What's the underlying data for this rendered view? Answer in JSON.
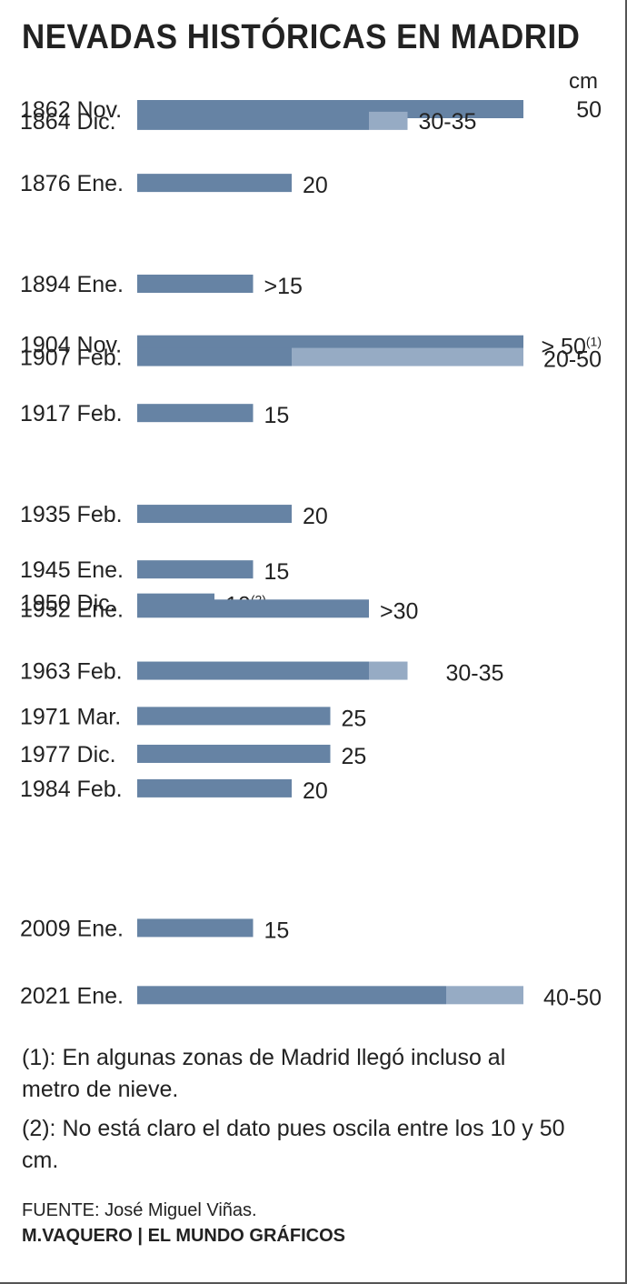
{
  "title": "NEVADAS HISTÓRICAS EN MADRID",
  "unit_label": "cm",
  "colors": {
    "dark": "#6683a4",
    "light": "#96abc4",
    "text": "#222222"
  },
  "chart_data": {
    "type": "bar",
    "orientation": "horizontal",
    "stacked": true,
    "xlim": [
      0,
      50
    ],
    "categories": [
      {
        "label": "1862 Nov.",
        "year": 1862.83,
        "min": 50,
        "max": 50,
        "text": "50",
        "note": ""
      },
      {
        "label": "1864 Dic.",
        "year": 1864.92,
        "min": 30,
        "max": 35,
        "text": "30-35",
        "note": ""
      },
      {
        "label": "1876 Ene.",
        "year": 1876.0,
        "min": 20,
        "max": 20,
        "text": "20",
        "note": ""
      },
      {
        "label": "1894 Ene.",
        "year": 1894.0,
        "min": 15,
        "max": 15,
        "text": ">15",
        "note": ""
      },
      {
        "label": "1904 Nov.",
        "year": 1904.83,
        "min": 50,
        "max": 50,
        "text": "> 50",
        "note": "(1)"
      },
      {
        "label": "1907 Feb.",
        "year": 1907.08,
        "min": 20,
        "max": 50,
        "text": "20-50",
        "note": ""
      },
      {
        "label": "1917 Feb.",
        "year": 1917.08,
        "min": 15,
        "max": 15,
        "text": "15",
        "note": ""
      },
      {
        "label": "1935 Feb.",
        "year": 1935.08,
        "min": 20,
        "max": 20,
        "text": "20",
        "note": ""
      },
      {
        "label": "1945 Ene.",
        "year": 1945.0,
        "min": 15,
        "max": 15,
        "text": "15",
        "note": ""
      },
      {
        "label": "1950 Dic.",
        "year": 1950.92,
        "min": 10,
        "max": 10,
        "text": "10",
        "note": "(2)"
      },
      {
        "label": "1952 Ene.",
        "year": 1952.0,
        "min": 30,
        "max": 30,
        "text": ">30",
        "note": ""
      },
      {
        "label": "1963 Feb.",
        "year": 1963.08,
        "min": 30,
        "max": 35,
        "text": "30-35",
        "note": ""
      },
      {
        "label": "1971 Mar.",
        "year": 1971.17,
        "min": 25,
        "max": 25,
        "text": "25",
        "note": ""
      },
      {
        "label": "1977 Dic.",
        "year": 1977.92,
        "min": 25,
        "max": 25,
        "text": "25",
        "note": ""
      },
      {
        "label": "1984 Feb.",
        "year": 1984.08,
        "min": 20,
        "max": 20,
        "text": "20",
        "note": ""
      },
      {
        "label": "2009 Ene.",
        "year": 2009.0,
        "min": 15,
        "max": 15,
        "text": "15",
        "note": ""
      },
      {
        "label": "2021 Ene.",
        "year": 2021.0,
        "min": 40,
        "max": 50,
        "text": "40-50",
        "note": ""
      }
    ]
  },
  "notes": [
    "(1): En algunas zonas de Madrid llegó incluso al metro de nieve.",
    "(2): No está claro el dato pues oscila entre los 10 y 50 cm."
  ],
  "source": "FUENTE: José Miguel Viñas.",
  "credit": "M.VAQUERO | EL MUNDO GRÁFICOS"
}
